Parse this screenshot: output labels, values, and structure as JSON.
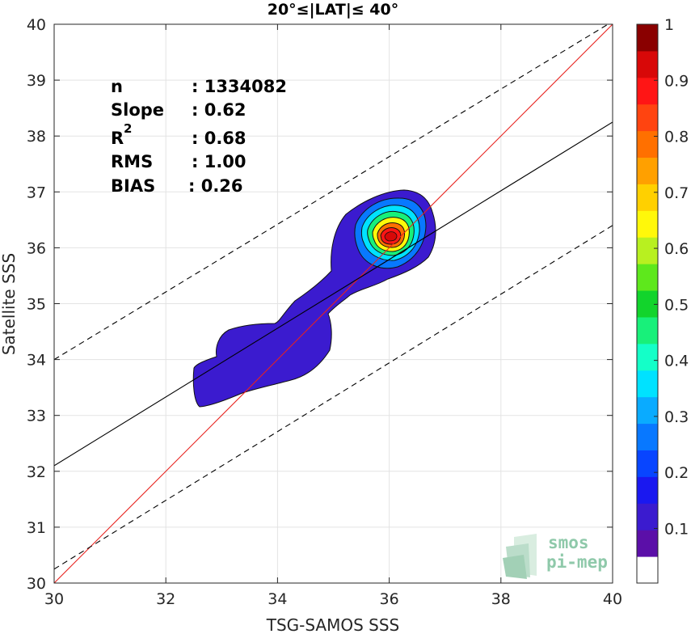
{
  "chart_data": {
    "type": "heatmap",
    "title": "20°≤|LAT|≤ 40°",
    "xlabel": "TSG-SAMOS SSS",
    "ylabel": "Satellite SSS",
    "xlim": [
      30,
      40
    ],
    "ylim": [
      30,
      40
    ],
    "xticks": [
      "30",
      "32",
      "34",
      "36",
      "38",
      "40"
    ],
    "yticks": [
      "30",
      "31",
      "32",
      "33",
      "34",
      "35",
      "36",
      "37",
      "38",
      "39",
      "40"
    ],
    "grid": true,
    "stats": [
      {
        "label": "n",
        "value": ": 1334082"
      },
      {
        "label": "Slope",
        "value": ": 0.62"
      },
      {
        "label": "R",
        "sup": "2",
        "value": ": 0.68"
      },
      {
        "label": "RMS",
        "value": ": 1.00"
      },
      {
        "label": "BIAS",
        "value": ": 0.26"
      }
    ],
    "lines": {
      "identity": {
        "x": [
          30,
          40
        ],
        "y": [
          30,
          40
        ],
        "color": "#e8221e"
      },
      "regression": {
        "x": [
          30,
          40
        ],
        "y": [
          32.1,
          38.25
        ],
        "color": "#000000"
      },
      "upper_bound": {
        "x": [
          30,
          40
        ],
        "y": [
          34.0,
          40.05
        ],
        "color": "#000000",
        "dash": true
      },
      "lower_bound": {
        "x": [
          30,
          40
        ],
        "y": [
          30.25,
          36.4
        ],
        "color": "#000000",
        "dash": true
      }
    },
    "density_peak": {
      "x": 36.05,
      "y": 36.2
    },
    "colorbar": {
      "range": [
        0,
        1
      ],
      "ticks": [
        "0.1",
        "0.2",
        "0.3",
        "0.4",
        "0.5",
        "0.6",
        "0.7",
        "0.8",
        "0.9",
        "1"
      ],
      "colors": [
        "#ffffff",
        "#5b0fa8",
        "#3b1bcf",
        "#1a18f0",
        "#0845ff",
        "#0878ff",
        "#0aabff",
        "#00e2ff",
        "#14ffc8",
        "#18f07a",
        "#12d42c",
        "#5ee81c",
        "#b8f020",
        "#fff80a",
        "#ffd000",
        "#ffa000",
        "#ff7000",
        "#ff4410",
        "#ff1515",
        "#d80808",
        "#8a0000"
      ]
    },
    "logo": {
      "line1": "smos",
      "line2": "pi-mep"
    }
  }
}
